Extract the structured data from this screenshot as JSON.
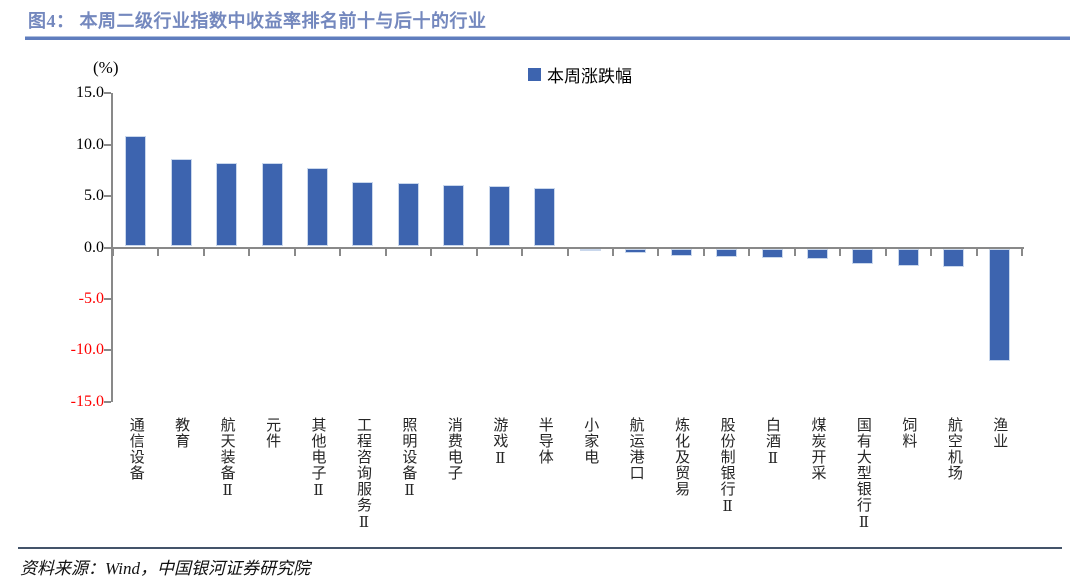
{
  "figure": {
    "title": "图4：  本周二级行业指数中收益率排名前十与后十的行业",
    "source_note": "资料来源：Wind，中国银河证券研究院"
  },
  "chart_data": {
    "type": "bar",
    "title": "本周二级行业指数中收益率排名前十与后十的行业",
    "unit_label": "(%)",
    "legend_position": "top-center",
    "categories": [
      "通信设备",
      "教育",
      "航天装备Ⅱ",
      "元件",
      "其他电子Ⅱ",
      "工程咨询服务Ⅱ",
      "照明设备Ⅱ",
      "消费电子",
      "游戏Ⅱ",
      "半导体",
      "小家电",
      "航运港口",
      "炼化及贸易",
      "股份制银行Ⅱ",
      "白酒Ⅱ",
      "煤炭开采",
      "国有大型银行Ⅱ",
      "饲料",
      "航空机场",
      "渔业"
    ],
    "series": [
      {
        "name": "本周涨跌幅",
        "values": [
          10.7,
          8.5,
          8.1,
          8.1,
          7.6,
          6.3,
          6.2,
          6.0,
          5.9,
          5.7,
          -0.2,
          -0.4,
          -0.7,
          -0.8,
          -0.9,
          -1.0,
          -1.5,
          -1.7,
          -1.8,
          -10.9
        ]
      }
    ],
    "ylim": [
      -15.0,
      15.0
    ],
    "yticks": [
      15.0,
      10.0,
      5.0,
      0.0,
      -5.0,
      -10.0,
      -15.0
    ],
    "ytick_decimals": 1,
    "grid": false,
    "colors": {
      "bar": "#3D64AF",
      "bar_border": "#C9D7EC",
      "axis": "#898989",
      "positive_tick_label": "#000000",
      "negative_tick_label": "#FF0000",
      "title": "#7488BE",
      "title_rule_light": "#AEBEDD",
      "title_rule_main": "#5F7DBE",
      "footer_rule": "#44546A"
    }
  }
}
